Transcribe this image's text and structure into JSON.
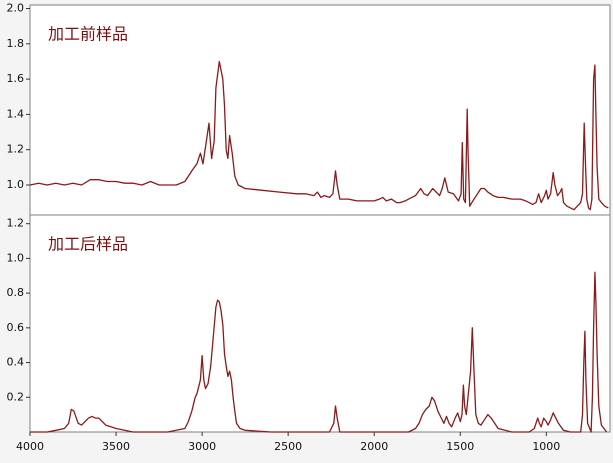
{
  "chart_data": [
    {
      "type": "line",
      "annotation": "加工前样品",
      "color": "#8b1a1a",
      "xlim": [
        4000,
        630
      ],
      "ylim": [
        0.83,
        2.02
      ],
      "yticks": [
        {
          "value": 1.0,
          "label": "1.0"
        },
        1.2,
        1.4,
        1.6,
        1.8,
        {
          "value": 2.0,
          "label": "2.0"
        }
      ],
      "x": [
        4000,
        3950,
        3900,
        3850,
        3800,
        3750,
        3700,
        3650,
        3600,
        3550,
        3500,
        3450,
        3400,
        3350,
        3300,
        3250,
        3200,
        3150,
        3100,
        3060,
        3030,
        3010,
        2995,
        2975,
        2960,
        2945,
        2930,
        2920,
        2900,
        2880,
        2870,
        2860,
        2850,
        2840,
        2825,
        2810,
        2790,
        2750,
        2650,
        2550,
        2450,
        2400,
        2350,
        2330,
        2310,
        2290,
        2260,
        2240,
        2225,
        2215,
        2200,
        2150,
        2100,
        2050,
        2000,
        1970,
        1950,
        1930,
        1900,
        1870,
        1850,
        1820,
        1800,
        1760,
        1730,
        1710,
        1690,
        1660,
        1640,
        1620,
        1605,
        1590,
        1570,
        1540,
        1510,
        1495,
        1488,
        1480,
        1470,
        1460,
        1455,
        1445,
        1420,
        1400,
        1380,
        1360,
        1340,
        1310,
        1280,
        1250,
        1200,
        1150,
        1120,
        1100,
        1080,
        1060,
        1045,
        1030,
        1010,
        1000,
        990,
        975,
        960,
        950,
        935,
        920,
        910,
        900,
        880,
        860,
        840,
        820,
        800,
        790,
        780,
        772,
        765,
        755,
        745,
        735,
        725,
        718,
        712,
        705,
        695,
        680,
        660,
        640
      ],
      "values": [
        1.0,
        1.01,
        1.0,
        1.01,
        1.0,
        1.01,
        1.0,
        1.03,
        1.03,
        1.02,
        1.02,
        1.01,
        1.01,
        1.0,
        1.02,
        1.0,
        1.0,
        1.0,
        1.02,
        1.08,
        1.12,
        1.18,
        1.12,
        1.25,
        1.35,
        1.15,
        1.25,
        1.55,
        1.7,
        1.6,
        1.45,
        1.2,
        1.15,
        1.28,
        1.18,
        1.05,
        1.0,
        0.98,
        0.97,
        0.96,
        0.95,
        0.95,
        0.94,
        0.96,
        0.93,
        0.94,
        0.93,
        0.95,
        1.08,
        1.0,
        0.92,
        0.92,
        0.91,
        0.91,
        0.91,
        0.92,
        0.93,
        0.91,
        0.92,
        0.9,
        0.9,
        0.91,
        0.92,
        0.94,
        0.98,
        0.95,
        0.94,
        0.98,
        0.96,
        0.94,
        0.98,
        1.04,
        0.96,
        0.95,
        0.91,
        0.95,
        1.24,
        0.92,
        0.9,
        1.43,
        1.2,
        0.88,
        0.92,
        0.95,
        0.98,
        0.98,
        0.96,
        0.94,
        0.93,
        0.93,
        0.92,
        0.92,
        0.91,
        0.9,
        0.89,
        0.9,
        0.95,
        0.9,
        0.94,
        0.97,
        0.92,
        0.95,
        1.07,
        1.0,
        0.94,
        0.96,
        0.98,
        0.9,
        0.88,
        0.87,
        0.86,
        0.88,
        0.9,
        0.95,
        1.35,
        1.1,
        0.92,
        0.87,
        0.86,
        0.92,
        1.6,
        1.68,
        1.4,
        1.1,
        0.92,
        0.9,
        0.88,
        0.87
      ]
    },
    {
      "type": "line",
      "annotation": "加工后样品",
      "color": "#8b1a1a",
      "xlim": [
        4000,
        630
      ],
      "ylim": [
        0,
        1.25
      ],
      "yticks": [
        0.2,
        0.4,
        0.6,
        0.8,
        {
          "value": 1.0,
          "label": "1.0"
        },
        1.2
      ],
      "xticks": [
        4000,
        3500,
        3000,
        2500,
        2000,
        1500,
        1000
      ],
      "x": [
        4000,
        3900,
        3850,
        3800,
        3775,
        3760,
        3745,
        3720,
        3700,
        3680,
        3660,
        3640,
        3620,
        3600,
        3580,
        3560,
        3530,
        3500,
        3450,
        3400,
        3300,
        3200,
        3100,
        3080,
        3060,
        3040,
        3030,
        3010,
        3000,
        2990,
        2980,
        2965,
        2950,
        2935,
        2920,
        2910,
        2900,
        2890,
        2880,
        2870,
        2860,
        2850,
        2840,
        2830,
        2820,
        2810,
        2800,
        2780,
        2750,
        2600,
        2400,
        2260,
        2235,
        2225,
        2215,
        2200,
        2100,
        1900,
        1800,
        1760,
        1740,
        1720,
        1700,
        1680,
        1665,
        1650,
        1630,
        1610,
        1595,
        1580,
        1565,
        1550,
        1530,
        1515,
        1500,
        1490,
        1482,
        1475,
        1465,
        1455,
        1440,
        1430,
        1420,
        1410,
        1395,
        1380,
        1360,
        1340,
        1320,
        1300,
        1280,
        1200,
        1100,
        1070,
        1050,
        1040,
        1030,
        1015,
        1000,
        990,
        975,
        960,
        945,
        930,
        915,
        900,
        860,
        800,
        790,
        782,
        776,
        770,
        760,
        740,
        732,
        725,
        718,
        712,
        705,
        695,
        680,
        650
      ],
      "values": [
        0.0,
        0.0,
        0.01,
        0.02,
        0.05,
        0.13,
        0.12,
        0.05,
        0.04,
        0.06,
        0.08,
        0.09,
        0.08,
        0.08,
        0.06,
        0.04,
        0.03,
        0.02,
        0.01,
        0.0,
        0.0,
        0.0,
        0.02,
        0.06,
        0.12,
        0.2,
        0.22,
        0.3,
        0.44,
        0.3,
        0.25,
        0.28,
        0.38,
        0.55,
        0.72,
        0.76,
        0.75,
        0.7,
        0.62,
        0.45,
        0.38,
        0.32,
        0.35,
        0.3,
        0.2,
        0.12,
        0.05,
        0.02,
        0.01,
        0.0,
        0.0,
        0.0,
        0.05,
        0.15,
        0.08,
        0.0,
        0.0,
        0.0,
        0.0,
        0.02,
        0.05,
        0.1,
        0.13,
        0.15,
        0.2,
        0.18,
        0.12,
        0.08,
        0.05,
        0.09,
        0.05,
        0.03,
        0.08,
        0.11,
        0.06,
        0.1,
        0.27,
        0.15,
        0.1,
        0.2,
        0.35,
        0.6,
        0.35,
        0.1,
        0.05,
        0.04,
        0.07,
        0.1,
        0.08,
        0.05,
        0.02,
        0.0,
        0.0,
        0.02,
        0.08,
        0.05,
        0.03,
        0.08,
        0.06,
        0.04,
        0.07,
        0.11,
        0.08,
        0.05,
        0.03,
        0.01,
        0.0,
        0.0,
        0.1,
        0.4,
        0.58,
        0.3,
        0.05,
        0.0,
        0.2,
        0.6,
        0.92,
        0.75,
        0.45,
        0.15,
        0.04,
        0.0
      ]
    }
  ]
}
